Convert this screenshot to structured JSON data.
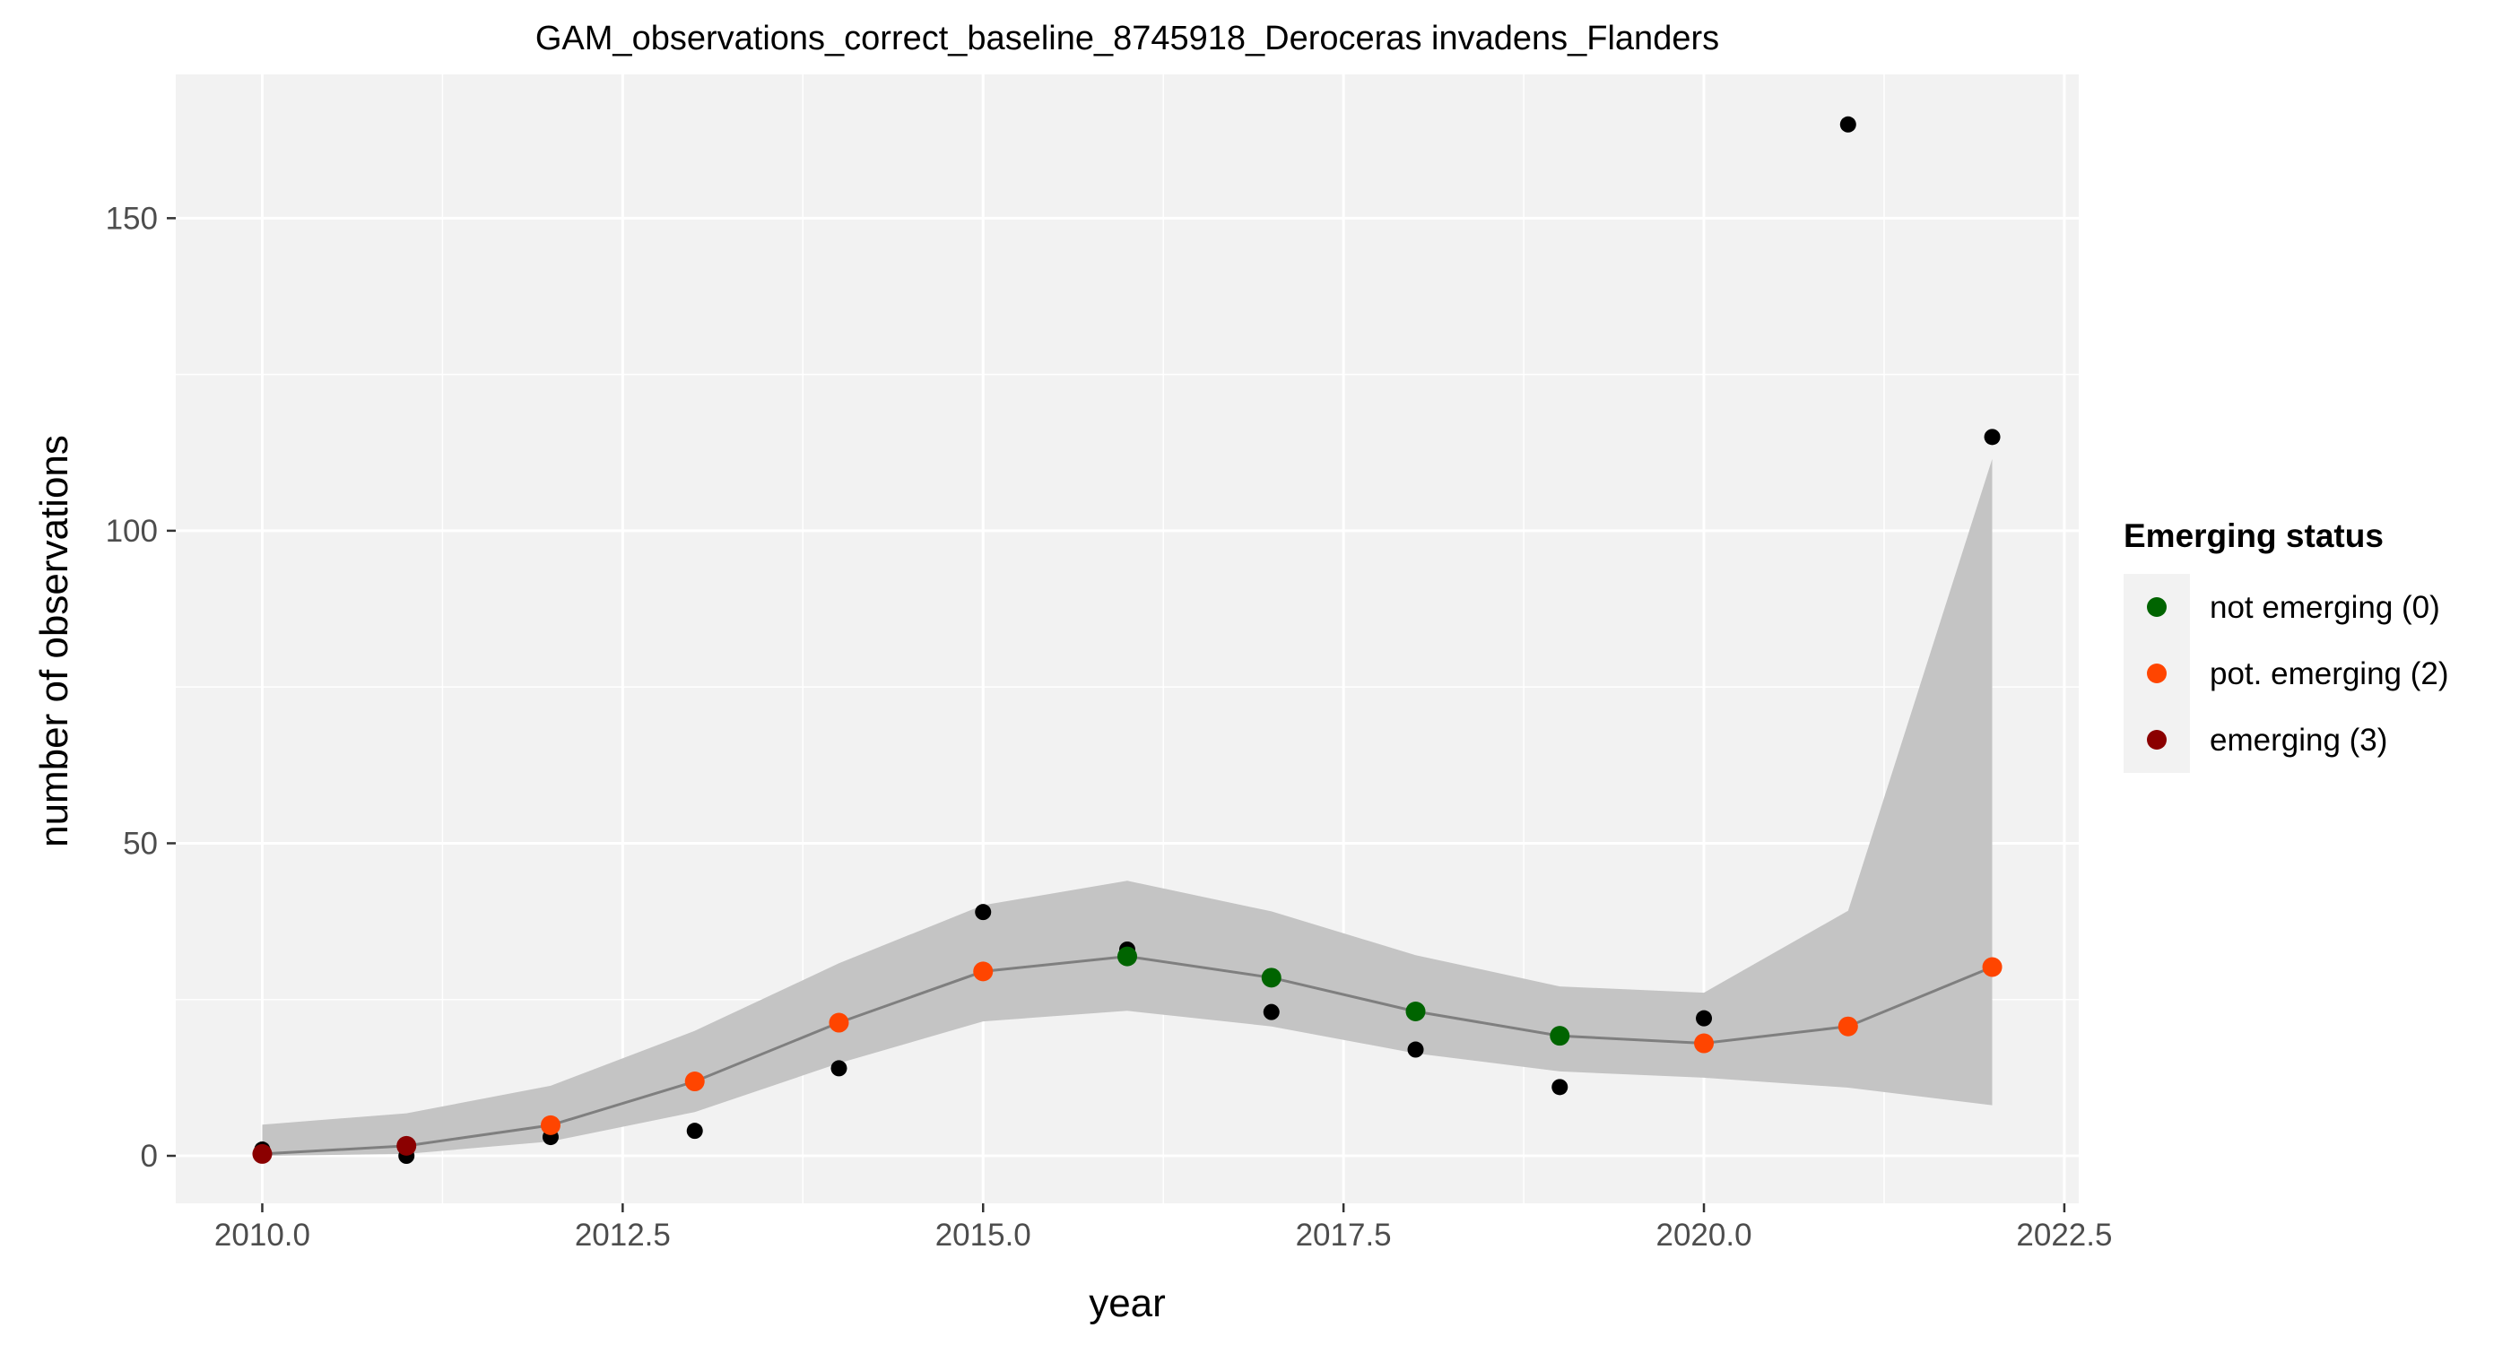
{
  "chart_data": {
    "type": "line",
    "title": "GAM_observations_correct_baseline_8745918_Deroceras invadens_Flanders",
    "xlabel": "year",
    "ylabel": "number of observations",
    "xlim": [
      2009.4,
      2022.6
    ],
    "ylim": [
      -7.6,
      173
    ],
    "x_ticks": [
      2010.0,
      2012.5,
      2015.0,
      2017.5,
      2020.0,
      2022.5
    ],
    "x_tick_labels": [
      "2010.0",
      "2012.5",
      "2015.0",
      "2017.5",
      "2020.0",
      "2022.5"
    ],
    "y_ticks": [
      0,
      50,
      100,
      150
    ],
    "y_tick_labels": [
      "0",
      "50",
      "100",
      "150"
    ],
    "grid": true,
    "legend_position": "right",
    "colors": {
      "panel_background": "#f2f2f2",
      "grid": "#ffffff",
      "ribbon": "#c4c4c4",
      "fit_line": "#7f7f7f",
      "observed": "#000000"
    },
    "legend": {
      "title": "Emerging status",
      "entries": [
        {
          "label": "not emerging (0)",
          "status": 0,
          "color": "#006400"
        },
        {
          "label": "pot. emerging (2)",
          "status": 2,
          "color": "#ff4500"
        },
        {
          "label": "emerging (3)",
          "status": 3,
          "color": "#8b0000"
        }
      ]
    },
    "series": [
      {
        "role": "fit",
        "x": [
          2010,
          2011,
          2012,
          2013,
          2014,
          2015,
          2016,
          2017,
          2018,
          2019,
          2020,
          2021,
          2022
        ],
        "values": [
          0.3,
          1.6,
          4.9,
          11.9,
          21.3,
          29.5,
          31.9,
          28.5,
          23.1,
          19.2,
          18.0,
          20.7,
          30.2
        ],
        "lower": [
          0.0,
          0.3,
          2.3,
          7.0,
          14.8,
          21.5,
          23.2,
          20.7,
          16.4,
          13.5,
          12.5,
          10.9,
          8.1
        ],
        "upper": [
          5.0,
          6.8,
          11.2,
          20.0,
          30.8,
          40.1,
          44.0,
          39.1,
          32.1,
          27.1,
          26.1,
          39.2,
          111.5
        ],
        "status": [
          3,
          3,
          2,
          2,
          2,
          2,
          0,
          0,
          0,
          0,
          2,
          2,
          2
        ]
      },
      {
        "role": "observed",
        "x": [
          2010,
          2011,
          2012,
          2013,
          2014,
          2015,
          2016,
          2017,
          2018,
          2019,
          2020,
          2021,
          2022
        ],
        "values": [
          1,
          0,
          3,
          4,
          14,
          39,
          33,
          23,
          17,
          11,
          22,
          165,
          115
        ]
      }
    ]
  }
}
